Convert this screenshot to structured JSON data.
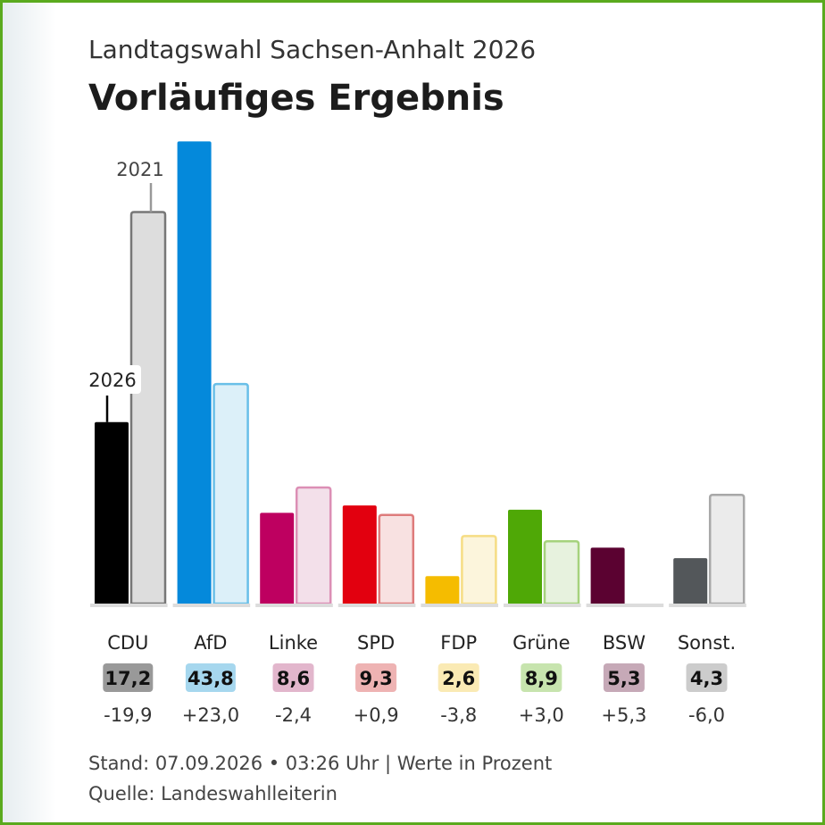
{
  "header": {
    "subtitle": "Landtagswahl Sachsen-Anhalt 2026",
    "title": "Vorläufiges Ergebnis"
  },
  "footer": {
    "stand": "Stand: 07.09.2026 • 03:26 Uhr | Werte in Prozent",
    "quelle": "Quelle: Landeswahlleiterin"
  },
  "chart_data": {
    "type": "bar",
    "ylim": [
      0,
      44
    ],
    "series": [
      {
        "name": "2026",
        "values": [
          17.2,
          43.8,
          8.6,
          9.3,
          2.6,
          8.9,
          5.3,
          4.3
        ]
      },
      {
        "name": "2021",
        "values": [
          37.1,
          20.8,
          11.0,
          8.4,
          6.4,
          5.9,
          0,
          10.3
        ]
      }
    ],
    "parties": [
      {
        "name": "CDU",
        "value": "17,2",
        "diff": "-19,9",
        "color": "#000000",
        "prev_fill": "#dddddd",
        "prev_stroke": "#777777",
        "badge": "#999999"
      },
      {
        "name": "AfD",
        "value": "43,8",
        "diff": "+23,0",
        "color": "#0489db",
        "prev_fill": "#dcf0f9",
        "prev_stroke": "#69bfe8",
        "badge": "#a6d7ee"
      },
      {
        "name": "Linke",
        "value": "8,6",
        "diff": "-2,4",
        "color": "#be0060",
        "prev_fill": "#f3e0ea",
        "prev_stroke": "#dc8fb5",
        "badge": "#e2b6cc"
      },
      {
        "name": "SPD",
        "value": "9,3",
        "diff": "+0,9",
        "color": "#e2000f",
        "prev_fill": "#f8e1e1",
        "prev_stroke": "#de7b7b",
        "badge": "#eeb3b3"
      },
      {
        "name": "FDP",
        "value": "2,6",
        "diff": "-3,8",
        "color": "#f5bc00",
        "prev_fill": "#fcf5dc",
        "prev_stroke": "#f6dd84",
        "badge": "#faeab4"
      },
      {
        "name": "Grüne",
        "value": "8,9",
        "diff": "+3,0",
        "color": "#4fa806",
        "prev_fill": "#e7f2de",
        "prev_stroke": "#a6d27d",
        "badge": "#c7e4ae"
      },
      {
        "name": "BSW",
        "value": "5,3",
        "diff": "+5,3",
        "color": "#5b0231",
        "prev_fill": "#f0e6eb",
        "prev_stroke": "#c19cae",
        "badge": "#c6a9b7"
      },
      {
        "name": "Sonst.",
        "value": "4,3",
        "diff": "-6,0",
        "color": "#53575a",
        "prev_fill": "#ebebeb",
        "prev_stroke": "#a8a8a8",
        "badge": "#cccccc"
      }
    ],
    "annotations": {
      "current": "2026",
      "previous": "2021"
    }
  }
}
